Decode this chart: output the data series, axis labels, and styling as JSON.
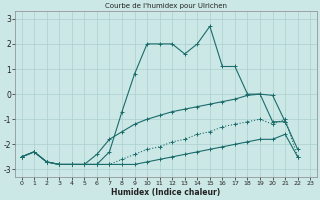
{
  "title": "Courbe de l'humidex pour Ulrichen",
  "xlabel": "Humidex (Indice chaleur)",
  "xlim": [
    -0.5,
    23.5
  ],
  "ylim": [
    -3.3,
    3.3
  ],
  "xticks": [
    0,
    1,
    2,
    3,
    4,
    5,
    6,
    7,
    8,
    9,
    10,
    11,
    12,
    13,
    14,
    15,
    16,
    17,
    18,
    19,
    20,
    21,
    22,
    23
  ],
  "yticks": [
    -3,
    -2,
    -1,
    0,
    1,
    2,
    3
  ],
  "bg_color": "#cce8e6",
  "grid_color": "#aacfcd",
  "line_color": "#1a6b6b",
  "lines": [
    {
      "x": [
        0,
        1,
        2,
        3,
        4,
        5,
        6,
        7,
        8,
        9,
        10,
        11,
        12,
        13,
        14,
        15,
        16,
        17,
        18,
        19,
        20,
        21
      ],
      "y": [
        -2.5,
        -2.3,
        -2.7,
        -2.8,
        -2.8,
        -2.8,
        -2.8,
        -2.3,
        -0.7,
        0.8,
        2.0,
        2.0,
        2.0,
        1.6,
        2.0,
        2.7,
        1.1,
        1.1,
        0.0,
        0.0,
        -1.1,
        -1.1
      ],
      "style": "-"
    },
    {
      "x": [
        0,
        1,
        2,
        3,
        4,
        5,
        6,
        7,
        8,
        9,
        10,
        11,
        12,
        13,
        14,
        15,
        16,
        17,
        18,
        19,
        20,
        21,
        22
      ],
      "y": [
        -2.5,
        -2.3,
        -2.7,
        -2.8,
        -2.8,
        -2.8,
        -2.4,
        -1.8,
        -1.5,
        -1.2,
        -1.0,
        -0.85,
        -0.7,
        -0.6,
        -0.5,
        -0.4,
        -0.3,
        -0.2,
        -0.05,
        0.0,
        -0.05,
        -1.1,
        -2.2
      ],
      "style": "-"
    },
    {
      "x": [
        0,
        1,
        2,
        3,
        4,
        5,
        6,
        7,
        8,
        9,
        10,
        11,
        12,
        13,
        14,
        15,
        16,
        17,
        18,
        19,
        20,
        21,
        22
      ],
      "y": [
        -2.5,
        -2.3,
        -2.7,
        -2.8,
        -2.8,
        -2.8,
        -2.8,
        -2.8,
        -2.6,
        -2.4,
        -2.2,
        -2.1,
        -1.9,
        -1.8,
        -1.6,
        -1.5,
        -1.3,
        -1.2,
        -1.1,
        -1.0,
        -1.2,
        -1.0,
        -2.5
      ],
      "style": ":"
    },
    {
      "x": [
        0,
        1,
        2,
        3,
        4,
        5,
        6,
        7,
        8,
        9,
        10,
        11,
        12,
        13,
        14,
        15,
        16,
        17,
        18,
        19,
        20,
        21,
        22
      ],
      "y": [
        -2.5,
        -2.3,
        -2.7,
        -2.8,
        -2.8,
        -2.8,
        -2.8,
        -2.8,
        -2.8,
        -2.8,
        -2.7,
        -2.6,
        -2.5,
        -2.4,
        -2.3,
        -2.2,
        -2.1,
        -2.0,
        -1.9,
        -1.8,
        -1.8,
        -1.6,
        -2.5
      ],
      "style": "-"
    }
  ]
}
